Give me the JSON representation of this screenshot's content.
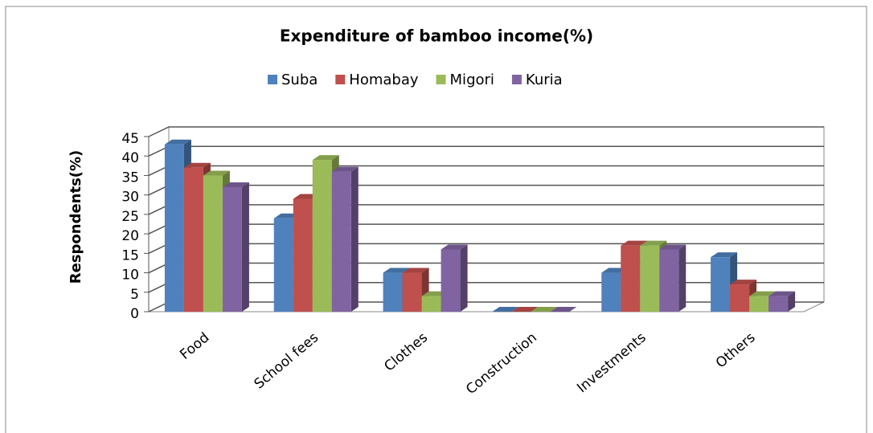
{
  "chart_data": {
    "type": "bar3d",
    "title": "Expenditure of bamboo income(%)",
    "y_label": "Respondents(%)",
    "categories": [
      "Food",
      "School fees",
      "Clothes",
      "Construction",
      "Investments",
      "Others"
    ],
    "series": [
      {
        "name": "Suba",
        "color": "#4f81bd",
        "values": [
          43,
          24,
          10,
          0,
          10,
          14
        ]
      },
      {
        "name": "Homabay",
        "color": "#c0504d",
        "values": [
          37,
          29,
          10,
          0,
          17,
          7
        ]
      },
      {
        "name": "Migori",
        "color": "#9bbb59",
        "values": [
          35,
          39,
          4,
          0,
          17,
          4
        ]
      },
      {
        "name": "Kuria",
        "color": "#8064a2",
        "values": [
          32,
          36,
          16,
          0,
          16,
          4
        ]
      }
    ],
    "ylim": [
      0,
      45
    ],
    "yticks": [
      0,
      5,
      10,
      15,
      20,
      25,
      30,
      35,
      40,
      45
    ],
    "grid": true,
    "legend": "top"
  }
}
